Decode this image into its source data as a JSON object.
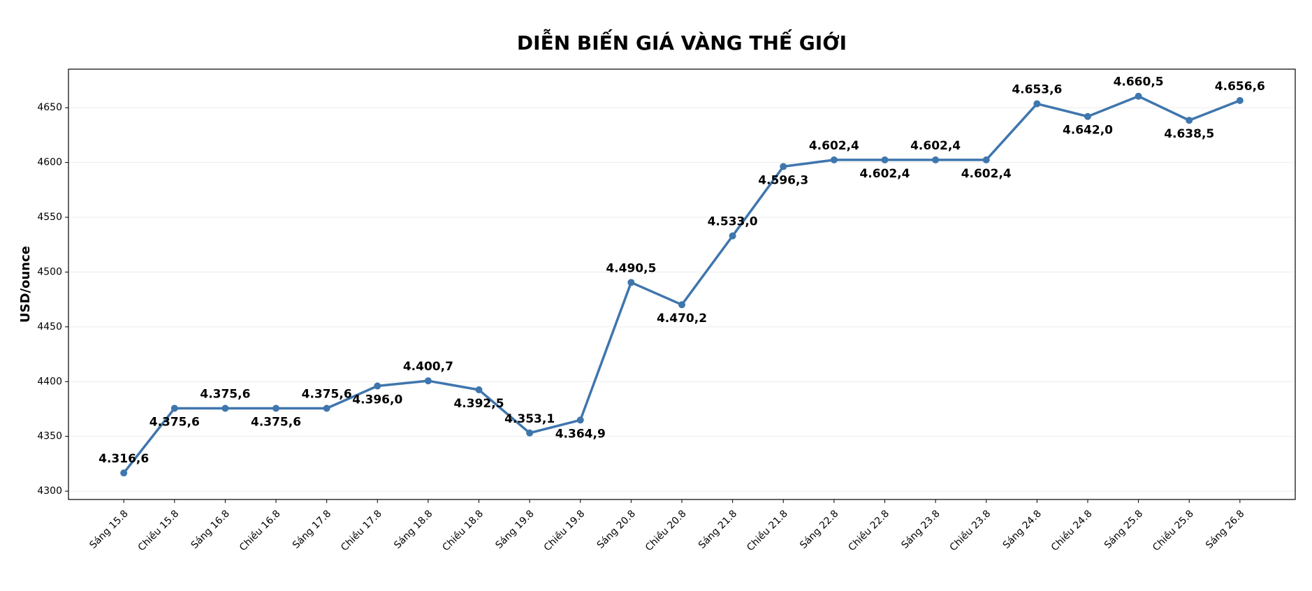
{
  "chart_data": {
    "type": "line",
    "title": "DIỄN BIẾN GIÁ VÀNG THẾ GIỚI",
    "y_label": "USD/ounce",
    "categories": [
      "Sáng 15.8",
      "Chiều 15.8",
      "Sáng 16.8",
      "Chiều 16.8",
      "Sáng 17.8",
      "Chiều 17.8",
      "Sáng 18.8",
      "Chiều 18.8",
      "Sáng 19.8",
      "Chiều 19.8",
      "Sáng 20.8",
      "Chiều 20.8",
      "Sáng 21.8",
      "Chiều 21.8",
      "Sáng 22.8",
      "Chiều 22.8",
      "Sáng 23.8",
      "Chiều 23.8",
      "Sáng 24.8",
      "Chiều 24.8",
      "Sáng 25.8",
      "Chiều 25.8",
      "Sáng 26.8"
    ],
    "values": [
      4316.6,
      4375.6,
      4375.6,
      4375.6,
      4375.6,
      4396.0,
      4400.7,
      4392.5,
      4353.1,
      4364.9,
      4490.5,
      4470.2,
      4533.0,
      4596.3,
      4602.4,
      4602.4,
      4602.4,
      4602.4,
      4653.6,
      4642.0,
      4660.5,
      4638.5,
      4656.6
    ],
    "value_labels": [
      "4.316,6",
      "4.375,6",
      "4.375,6",
      "4.375,6",
      "4.375,6",
      "4.396,0",
      "4.400,7",
      "4.392,5",
      "4.353,1",
      "4.364,9",
      "4.490,5",
      "4.470,2",
      "4.533,0",
      "4.596,3",
      "4.602,4",
      "4.602,4",
      "4.602,4",
      "4.602,4",
      "4.653,6",
      "4.642,0",
      "4.660,5",
      "4.638,5",
      "4.656,6"
    ],
    "color": "#3f76ad",
    "ylim": [
      4292.4,
      4685.2
    ],
    "yticks": [
      4300,
      4350,
      4400,
      4450,
      4500,
      4550,
      4600,
      4650
    ],
    "grid": true
  }
}
